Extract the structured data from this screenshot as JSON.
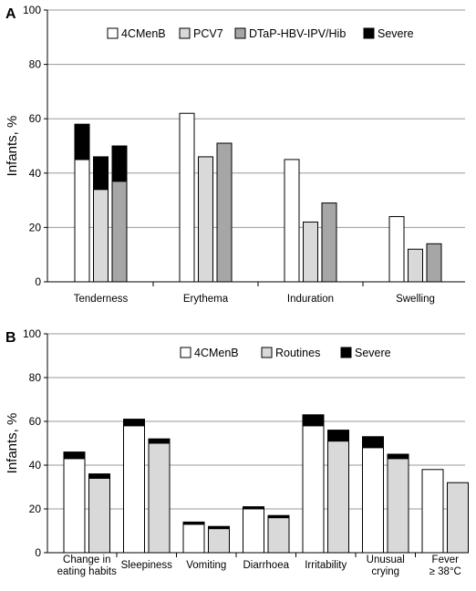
{
  "chart_data": [
    {
      "panel": "A",
      "type": "bar",
      "ylabel": "Infants, %",
      "ylim": [
        0,
        100
      ],
      "yticks": [
        0,
        20,
        40,
        60,
        80,
        100
      ],
      "grid": true,
      "legend_position": "top",
      "categories": [
        "Tenderness",
        "Erythema",
        "Induration",
        "Swelling"
      ],
      "series": [
        {
          "name": "4CMenB",
          "color": "#ffffff",
          "values": [
            58,
            62,
            45,
            24
          ],
          "severe": [
            13,
            0,
            0,
            0
          ]
        },
        {
          "name": "PCV7",
          "color": "#d9d9d9",
          "values": [
            46,
            46,
            22,
            12
          ],
          "severe": [
            12,
            0,
            0,
            0
          ]
        },
        {
          "name": "DTaP-HBV-IPV/Hib",
          "color": "#a6a6a6",
          "values": [
            50,
            51,
            29,
            14
          ],
          "severe": [
            13,
            0,
            0,
            0
          ]
        }
      ],
      "severe_label": "Severe",
      "severe_color": "#000000"
    },
    {
      "panel": "B",
      "type": "bar",
      "ylabel": "Infants, %",
      "ylim": [
        0,
        100
      ],
      "yticks": [
        0,
        20,
        40,
        60,
        80,
        100
      ],
      "grid": true,
      "legend_position": "top",
      "categories": [
        [
          "Change in",
          "eating habits"
        ],
        [
          "Sleepiness"
        ],
        [
          "Vomiting"
        ],
        [
          "Diarrhoea"
        ],
        [
          "Irritability"
        ],
        [
          "Unusual",
          "crying"
        ],
        [
          "Fever",
          "≥ 38°C"
        ]
      ],
      "series": [
        {
          "name": "4CMenB",
          "color": "#ffffff",
          "values": [
            46,
            61,
            14,
            21,
            63,
            53,
            38
          ],
          "severe": [
            3,
            3,
            1,
            1,
            5,
            5,
            0
          ]
        },
        {
          "name": "Routines",
          "color": "#d9d9d9",
          "values": [
            36,
            52,
            12,
            17,
            56,
            45,
            32
          ],
          "severe": [
            2,
            2,
            1,
            1,
            5,
            2,
            0
          ]
        }
      ],
      "severe_label": "Severe",
      "severe_color": "#000000"
    }
  ]
}
